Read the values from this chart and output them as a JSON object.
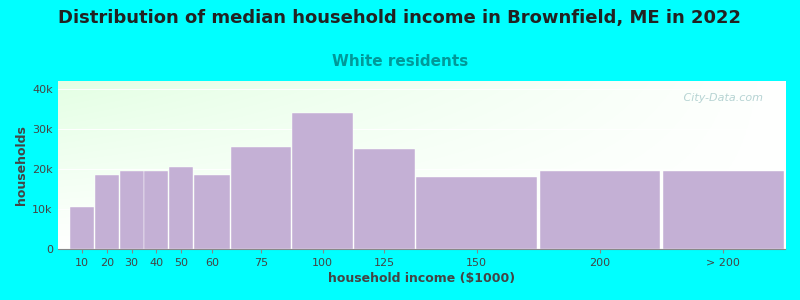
{
  "title": "Distribution of median household income in Brownfield, ME in 2022",
  "subtitle": "White residents",
  "xlabel": "household income ($1000)",
  "ylabel": "households",
  "background_color": "#00FFFF",
  "bar_color": "#C4B0D5",
  "categories": [
    "10",
    "20",
    "30",
    "40",
    "50",
    "60",
    "75",
    "100",
    "125",
    "150",
    "200",
    "> 200"
  ],
  "values": [
    10500,
    18500,
    19500,
    19500,
    20500,
    18500,
    25500,
    34000,
    25000,
    18000,
    19500,
    19500
  ],
  "x_left_edges": [
    10,
    20,
    30,
    40,
    50,
    60,
    75,
    100,
    125,
    150,
    200,
    250
  ],
  "bar_widths": [
    10,
    10,
    10,
    10,
    10,
    15,
    25,
    25,
    25,
    50,
    50,
    50
  ],
  "xlim": [
    5,
    300
  ],
  "ylim": [
    0,
    42000
  ],
  "yticks": [
    0,
    10000,
    20000,
    30000,
    40000
  ],
  "ytick_labels": [
    "0",
    "10k",
    "20k",
    "30k",
    "40k"
  ],
  "title_fontsize": 13,
  "subtitle_fontsize": 11,
  "subtitle_color": "#009999",
  "axis_label_fontsize": 9,
  "tick_fontsize": 8,
  "watermark": " City-Data.com",
  "watermark_color": "#AACCCC",
  "title_color": "#222222"
}
